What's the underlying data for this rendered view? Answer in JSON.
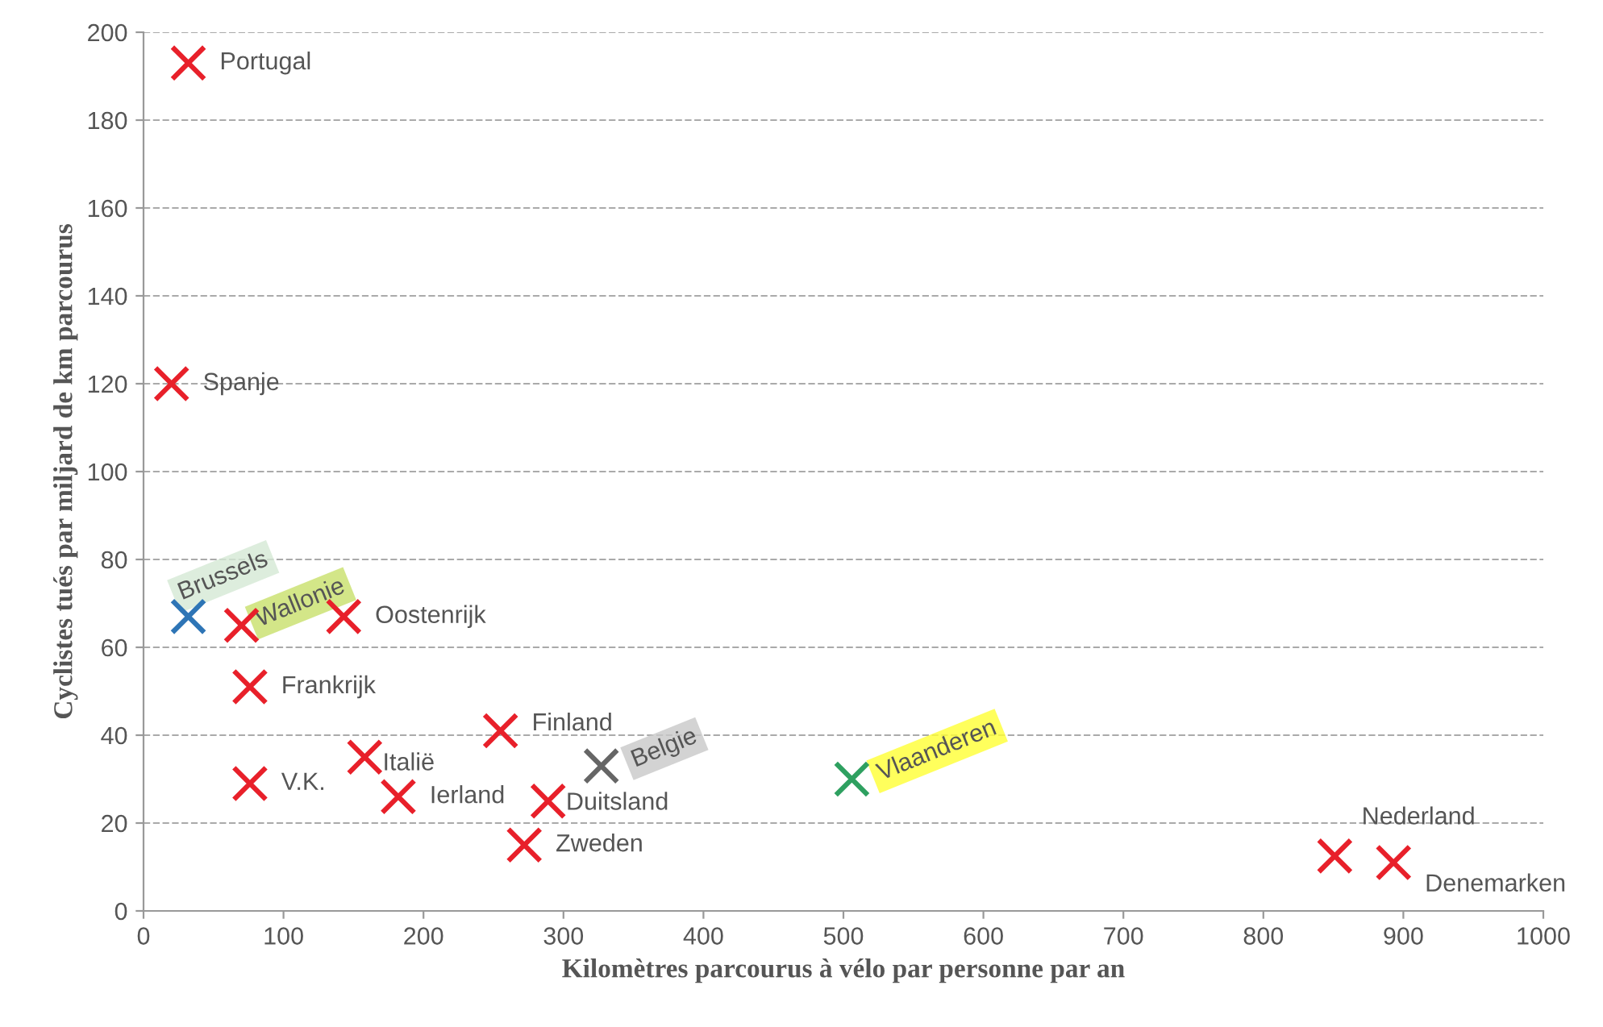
{
  "chart_data": {
    "type": "scatter",
    "xlabel": "Kilomètres parcourus à vélo par personne par an",
    "ylabel": "Cyclistes tués par miljard de km parcourus",
    "xlim": [
      0,
      1000
    ],
    "xticks": [
      0,
      100,
      200,
      300,
      400,
      500,
      600,
      700,
      800,
      900,
      1000
    ],
    "ylim": [
      0,
      200
    ],
    "yticks": [
      0,
      20,
      40,
      60,
      80,
      100,
      120,
      140,
      160,
      180,
      200
    ],
    "grid": "y",
    "marker": "cross",
    "series": [
      {
        "name": "Portugal",
        "color": "#e8202a",
        "x": [
          32
        ],
        "values": [
          193
        ]
      },
      {
        "name": "Spanje",
        "color": "#e8202a",
        "x": [
          20
        ],
        "values": [
          120
        ]
      },
      {
        "name": "Brussels",
        "color": "#2e75b6",
        "x": [
          32
        ],
        "values": [
          67
        ]
      },
      {
        "name": "Wallonie",
        "color": "#e8202a",
        "x": [
          70
        ],
        "values": [
          65
        ]
      },
      {
        "name": "Oostenrijk",
        "color": "#e8202a",
        "x": [
          143
        ],
        "values": [
          67
        ]
      },
      {
        "name": "Frankrijk",
        "color": "#e8202a",
        "x": [
          76
        ],
        "values": [
          51
        ]
      },
      {
        "name": "V.K.",
        "color": "#e8202a",
        "x": [
          76
        ],
        "values": [
          29
        ]
      },
      {
        "name": "Italië",
        "color": "#e8202a",
        "x": [
          158
        ],
        "values": [
          35
        ]
      },
      {
        "name": "Ierland",
        "color": "#e8202a",
        "x": [
          182
        ],
        "values": [
          26
        ]
      },
      {
        "name": "Finland",
        "color": "#e8202a",
        "x": [
          255
        ],
        "values": [
          41
        ]
      },
      {
        "name": "Duitsland",
        "color": "#e8202a",
        "x": [
          289
        ],
        "values": [
          25
        ]
      },
      {
        "name": "Zweden",
        "color": "#e8202a",
        "x": [
          272
        ],
        "values": [
          15
        ]
      },
      {
        "name": "Belgie",
        "color": "#666666",
        "x": [
          327
        ],
        "values": [
          33
        ]
      },
      {
        "name": "Vlaanderen",
        "color": "#2ea060",
        "x": [
          506
        ],
        "values": [
          30
        ]
      },
      {
        "name": "Nederland",
        "color": "#e8202a",
        "x": [
          851
        ],
        "values": [
          12.5
        ]
      },
      {
        "name": "Denemarken",
        "color": "#e8202a",
        "x": [
          893
        ],
        "values": [
          11
        ]
      }
    ]
  }
}
